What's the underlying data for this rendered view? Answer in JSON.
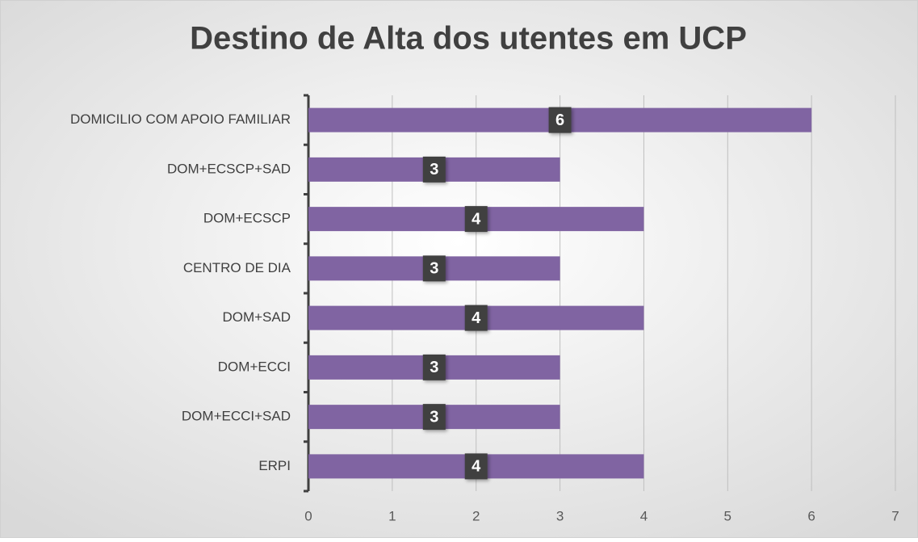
{
  "chart_data": {
    "type": "bar",
    "orientation": "horizontal",
    "title": "Destino de Alta dos utentes em UCP",
    "categories": [
      "DOMICILIO COM APOIO FAMILIAR",
      "DOM+ECSCP+SAD",
      "DOM+ECSCP",
      "CENTRO DE DIA",
      "DOM+SAD",
      "DOM+ECCI",
      "DOM+ECCI+SAD",
      "ERPI"
    ],
    "values": [
      6,
      3,
      4,
      3,
      4,
      3,
      3,
      4
    ],
    "color": "#8064a2",
    "xlim": [
      0,
      7
    ],
    "xticks": [
      0,
      1,
      2,
      3,
      4,
      5,
      6,
      7
    ],
    "grid": true
  }
}
